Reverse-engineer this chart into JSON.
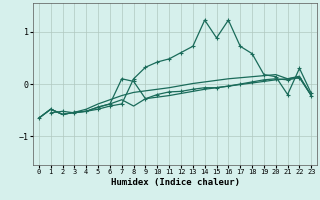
{
  "xlabel": "Humidex (Indice chaleur)",
  "bg_color": "#d6f0ec",
  "grid_color": "#b0c8c0",
  "line_color": "#1a6b5a",
  "xlim": [
    -0.5,
    23.5
  ],
  "ylim": [
    -1.55,
    1.55
  ],
  "yticks": [
    -1,
    0,
    1
  ],
  "xticks": [
    0,
    1,
    2,
    3,
    4,
    5,
    6,
    7,
    8,
    9,
    10,
    11,
    12,
    13,
    14,
    15,
    16,
    17,
    18,
    19,
    20,
    21,
    22,
    23
  ],
  "line1_x": [
    1,
    2,
    3,
    4,
    5,
    6,
    7,
    8,
    9,
    10,
    11,
    12,
    13,
    14,
    15,
    16,
    17,
    18,
    19,
    20,
    21,
    22,
    23
  ],
  "line1_y": [
    -0.55,
    -0.52,
    -0.55,
    -0.52,
    -0.48,
    -0.42,
    -0.38,
    0.1,
    0.32,
    0.42,
    0.48,
    0.6,
    0.72,
    1.22,
    0.88,
    1.22,
    0.72,
    0.58,
    0.18,
    0.14,
    -0.2,
    0.3,
    -0.18
  ],
  "line2_x": [
    0,
    1,
    2,
    3,
    4,
    5,
    6,
    7,
    8,
    9,
    10,
    11,
    12,
    13,
    14,
    15,
    16,
    17,
    18,
    19,
    20,
    21,
    22,
    23
  ],
  "line2_y": [
    -0.65,
    -0.48,
    -0.58,
    -0.54,
    -0.52,
    -0.44,
    -0.38,
    -0.3,
    -0.42,
    -0.28,
    -0.25,
    -0.22,
    -0.18,
    -0.14,
    -0.1,
    -0.07,
    -0.04,
    -0.01,
    0.02,
    0.05,
    0.08,
    0.1,
    0.13,
    -0.22
  ],
  "line3_x": [
    0,
    1,
    2,
    3,
    4,
    5,
    6,
    7,
    8,
    9,
    10,
    11,
    12,
    13,
    14,
    15,
    16,
    17,
    18,
    19,
    20,
    21,
    22,
    23
  ],
  "line3_y": [
    -0.65,
    -0.48,
    -0.58,
    -0.54,
    -0.52,
    -0.44,
    -0.38,
    0.1,
    0.05,
    -0.28,
    -0.2,
    -0.15,
    -0.14,
    -0.1,
    -0.07,
    -0.07,
    -0.04,
    0.0,
    0.04,
    0.08,
    0.1,
    0.08,
    0.12,
    -0.22
  ],
  "line4_x": [
    0,
    1,
    2,
    3,
    4,
    5,
    6,
    7,
    8,
    9,
    10,
    11,
    12,
    13,
    14,
    15,
    16,
    17,
    18,
    19,
    20,
    21,
    22,
    23
  ],
  "line4_y": [
    -0.65,
    -0.48,
    -0.58,
    -0.54,
    -0.48,
    -0.38,
    -0.3,
    -0.22,
    -0.16,
    -0.13,
    -0.1,
    -0.07,
    -0.03,
    0.01,
    0.04,
    0.07,
    0.1,
    0.12,
    0.14,
    0.16,
    0.18,
    0.1,
    0.15,
    -0.22
  ]
}
